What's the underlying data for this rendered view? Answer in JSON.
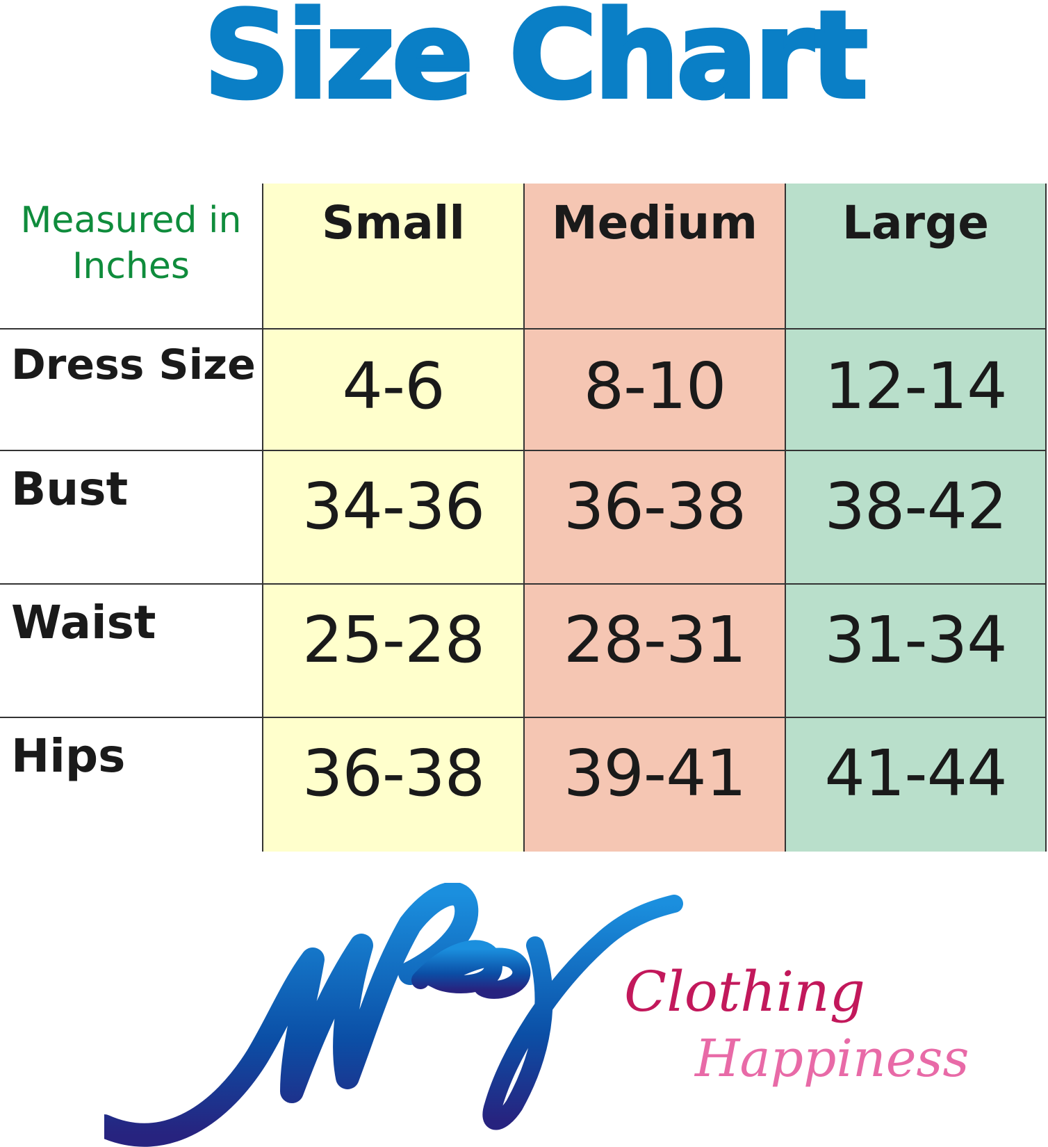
{
  "title": "Size Chart",
  "table": {
    "corner_label_line1": "Measured in",
    "corner_label_line2": "Inches",
    "columns": [
      "Small",
      "Medium",
      "Large"
    ],
    "rows": [
      {
        "label": "Dress Size",
        "values": [
          "4-6",
          "8-10",
          "12-14"
        ]
      },
      {
        "label": "Bust",
        "values": [
          "34-36",
          "36-38",
          "38-42"
        ]
      },
      {
        "label": "Waist",
        "values": [
          "25-28",
          "28-31",
          "31-34"
        ]
      },
      {
        "label": "Hips",
        "values": [
          "36-38",
          "39-41",
          "41-44"
        ]
      }
    ]
  },
  "brand": {
    "logo_text": "Nykey",
    "tagline1": "Clothing",
    "tagline2": "Happiness"
  },
  "colors": {
    "title": "#0a7fc6",
    "small": "#ffffcc",
    "medium": "#f5c6b3",
    "large": "#b9dfcb",
    "corner_label": "#0f8c3c",
    "tagline1": "#c2185b",
    "tagline2": "#e86aa7"
  }
}
